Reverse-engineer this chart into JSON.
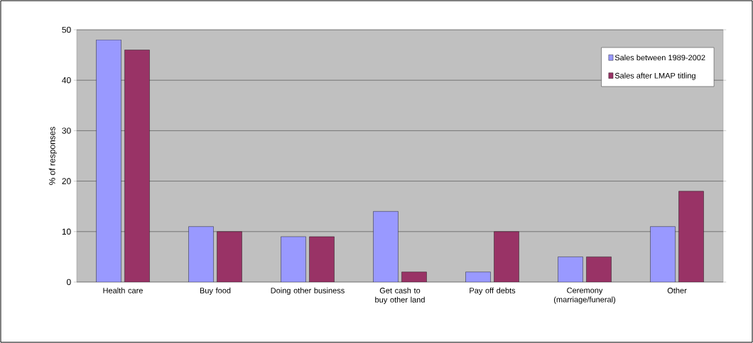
{
  "chart_data": {
    "type": "bar",
    "ylabel": "% of responses",
    "categories": [
      "Health care",
      "Buy food",
      "Doing other business",
      "Get cash to buy other land",
      "Pay off debts",
      "Ceremony (marriage/funeral)",
      "Other"
    ],
    "series": [
      {
        "name": "Sales between 1989-2002",
        "color": "#9999ff",
        "values": [
          48,
          11,
          9,
          14,
          2,
          5,
          11
        ]
      },
      {
        "name": "Sales after LMAP titling",
        "color": "#993366",
        "values": [
          46,
          10,
          9,
          2,
          10,
          5,
          18
        ]
      }
    ],
    "ylim": [
      0,
      50
    ],
    "yticks": [
      0,
      10,
      20,
      30,
      40,
      50
    ],
    "grid": "y",
    "legend": "top right"
  }
}
